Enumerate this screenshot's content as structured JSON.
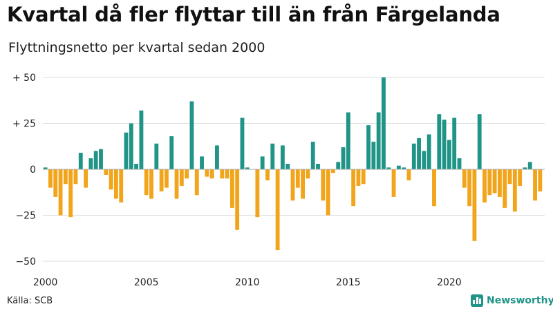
{
  "header": {
    "title": "Kvartal då fler flyttar till än från Färgelanda",
    "subtitle": "Flyttningsnetto per kvartal sedan 2000"
  },
  "footer": {
    "source": "Källa: SCB",
    "brand": "Newsworthy",
    "brand_icon": "bar-chart-logo-icon"
  },
  "colors": {
    "positive": "#1f9487",
    "negative": "#f2a41a",
    "grid": "#dddddd",
    "zero_line": "#aaaaaa"
  },
  "chart_data": {
    "type": "bar",
    "title": "Kvartal då fler flyttar till än från Färgelanda",
    "subtitle": "Flyttningsnetto per kvartal sedan 2000",
    "xlabel": "",
    "ylabel": "",
    "ylim": [
      -50,
      50
    ],
    "yticks": [
      {
        "value": 50,
        "label": "+ 50"
      },
      {
        "value": 25,
        "label": "+ 25"
      },
      {
        "value": 0,
        "label": "0"
      },
      {
        "value": -25,
        "label": "−25"
      },
      {
        "value": -50,
        "label": "−50"
      }
    ],
    "xticks": [
      {
        "label": "2000",
        "index": 0
      },
      {
        "label": "2005",
        "index": 20
      },
      {
        "label": "2010",
        "index": 40
      },
      {
        "label": "2015",
        "index": 60
      },
      {
        "label": "2020",
        "index": 80
      }
    ],
    "grid": true,
    "period": "quarter",
    "start": "2000 Q1",
    "values": [
      1,
      -10,
      -15,
      -25,
      -8,
      -26,
      -8,
      9,
      -10,
      6,
      10,
      11,
      -3,
      -11,
      -16,
      -18,
      20,
      25,
      3,
      32,
      -14,
      -16,
      14,
      -12,
      -10,
      18,
      -16,
      -9,
      -5,
      37,
      -14,
      7,
      -4,
      -5,
      13,
      -5,
      -5,
      -21,
      -33,
      28,
      1,
      0,
      -26,
      7,
      -6,
      14,
      -44,
      13,
      3,
      -17,
      -10,
      -16,
      -5,
      15,
      3,
      -17,
      -25,
      -2,
      4,
      12,
      31,
      -20,
      -9,
      -8,
      24,
      15,
      31,
      50,
      1,
      -15,
      2,
      1,
      -6,
      14,
      17,
      10,
      19,
      -20,
      30,
      27,
      16,
      28,
      6,
      -10,
      -20,
      -39,
      30,
      -18,
      -14,
      -13,
      -15,
      -21,
      -8,
      -23,
      -9,
      1,
      4,
      -17,
      -12
    ]
  }
}
